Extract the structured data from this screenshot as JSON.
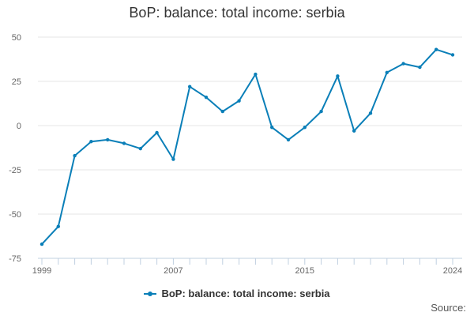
{
  "title": "BoP: balance: total income: serbia",
  "source_label": "Source:",
  "colors": {
    "series": "#0a7fb8",
    "grid": "#e6e6e6",
    "axis": "#c0d0e0",
    "text": "#666666"
  },
  "chart_data": {
    "type": "line",
    "title": "BoP: balance: total income: serbia",
    "xlabel": "",
    "ylabel": "",
    "x_tick_labels": [
      "1999",
      "2007",
      "2015",
      "2024"
    ],
    "x_ticks": [
      1999,
      2007,
      2015,
      2024
    ],
    "y_tick_labels": [
      "50",
      "25",
      "0",
      "-25",
      "-50",
      "-75"
    ],
    "y_ticks": [
      50,
      25,
      0,
      -25,
      -50,
      -75
    ],
    "xlim": [
      1999,
      2024
    ],
    "ylim": [
      -75,
      50
    ],
    "grid": true,
    "legend_position": "bottom",
    "series": [
      {
        "name": "BoP: balance: total income: serbia",
        "x": [
          1999,
          2000,
          2001,
          2002,
          2003,
          2004,
          2005,
          2006,
          2007,
          2008,
          2009,
          2010,
          2011,
          2012,
          2013,
          2014,
          2015,
          2016,
          2017,
          2018,
          2019,
          2020,
          2021,
          2022,
          2023,
          2024
        ],
        "values": [
          -67,
          -57,
          -17,
          -9,
          -8,
          -10,
          -13,
          -4,
          -19,
          22,
          16,
          8,
          14,
          29,
          -1,
          -8,
          -1,
          8,
          28,
          -3,
          7,
          30,
          35,
          33,
          43,
          40
        ]
      }
    ]
  }
}
